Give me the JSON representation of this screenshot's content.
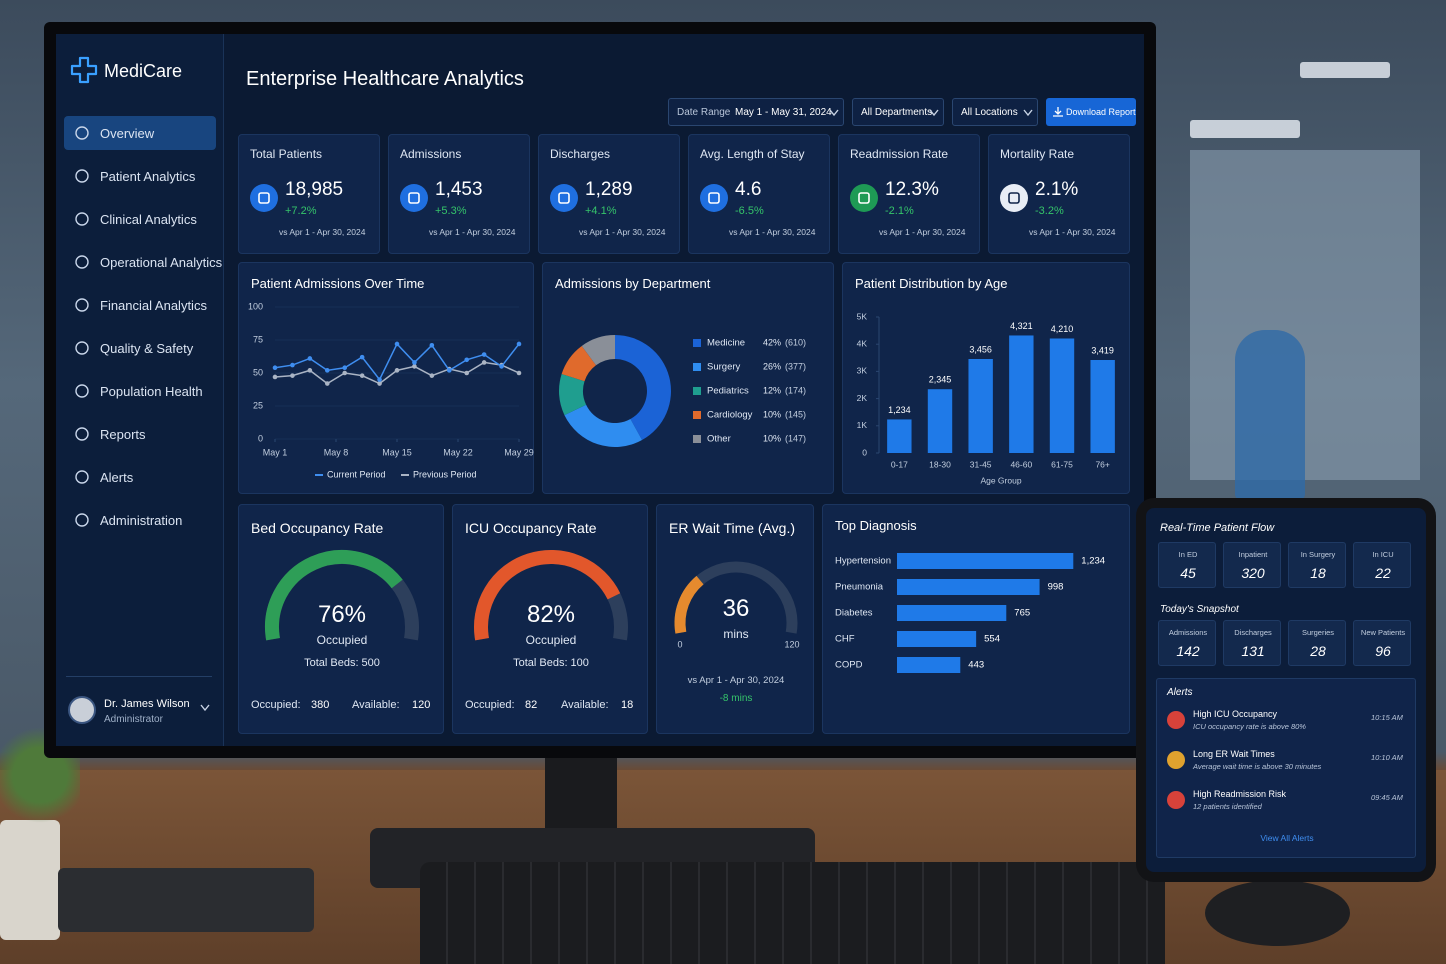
{
  "sidebar": {
    "brand": "MediCare",
    "nav": [
      "Overview",
      "Patient Analytics",
      "Clinical Analytics",
      "Operational Analytics",
      "Financial Analytics",
      "Quality & Safety",
      "Population Health",
      "Reports",
      "Alerts",
      "Administration"
    ],
    "user": {
      "name": "Dr. James Wilson",
      "role": "Administrator"
    }
  },
  "header": {
    "title": "Enterprise Healthcare Analytics",
    "date_label": "Date Range",
    "date_range": "May 1 - May 31, 2024",
    "department": "All Departments",
    "location": "All Locations",
    "download": "Download Report"
  },
  "kpis": [
    {
      "label": "Total Patients",
      "value": "18,985",
      "change": "+7.2%",
      "period": "vs Apr 1 - Apr 30, 2024",
      "color": "#1f6fe0"
    },
    {
      "label": "Admissions",
      "value": "1,453",
      "change": "+5.3%",
      "period": "vs Apr 1 - Apr 30, 2024",
      "color": "#1f6fe0"
    },
    {
      "label": "Discharges",
      "value": "1,289",
      "change": "+4.1%",
      "period": "vs Apr 1 - Apr 30, 2024",
      "color": "#1f6fe0"
    },
    {
      "label": "Avg. Length of Stay",
      "value": "4.6",
      "change": "-6.5%",
      "period": "vs Apr 1 - Apr 30, 2024",
      "color": "#1f6fe0"
    },
    {
      "label": "Readmission Rate",
      "value": "12.3%",
      "change": "-2.1%",
      "period": "vs Apr 1 - Apr 30, 2024",
      "color": "#1e9a55"
    },
    {
      "label": "Mortality Rate",
      "value": "2.1%",
      "change": "-3.2%",
      "period": "vs Apr 1 - Apr 30, 2024",
      "color": "#e8edf5"
    }
  ],
  "chart_data": [
    {
      "type": "line",
      "title": "Patient Admissions Over Time",
      "x": [
        1,
        3,
        5,
        7,
        9,
        11,
        13,
        15,
        17,
        19,
        21,
        23,
        25,
        27,
        29
      ],
      "xlim": [
        1,
        29
      ],
      "xticks": [
        {
          "value": 1,
          "label": "May 1"
        },
        {
          "value": 8,
          "label": "May 8"
        },
        {
          "value": 15,
          "label": "May 15"
        },
        {
          "value": 22,
          "label": "May 22"
        },
        {
          "value": 29,
          "label": "May 29"
        }
      ],
      "ylim": [
        0,
        100
      ],
      "yticks": [
        0,
        25,
        50,
        75,
        100
      ],
      "series": [
        {
          "name": "Current Period",
          "color": "#3f8ef0",
          "values": [
            54,
            56,
            61,
            52,
            54,
            62,
            45,
            72,
            58,
            71,
            52,
            60,
            64,
            55,
            72
          ]
        },
        {
          "name": "Previous Period",
          "color": "#aab4c4",
          "values": [
            47,
            48,
            52,
            42,
            50,
            48,
            42,
            52,
            55,
            48,
            53,
            50,
            58,
            56,
            50
          ]
        }
      ]
    },
    {
      "type": "pie",
      "title": "Admissions by Department",
      "categories": [
        "Medicine",
        "Surgery",
        "Pediatrics",
        "Cardiology",
        "Other"
      ],
      "values": [
        610,
        377,
        174,
        145,
        147
      ],
      "value_labels": [
        "(610)",
        "(377)",
        "(174)",
        "(145)",
        "(147)"
      ],
      "shares": [
        42,
        26,
        12,
        10,
        10
      ],
      "share_labels": [
        "42%",
        "26%",
        "12%",
        "10%",
        "10%"
      ],
      "colors": [
        "#1b63d6",
        "#2f8df0",
        "#1f9e8f",
        "#e06a2c",
        "#8a8f98"
      ]
    },
    {
      "type": "bar",
      "title": "Patient Distribution by Age",
      "x_label": "Age Group",
      "categories": [
        "0-17",
        "18-30",
        "31-45",
        "46-60",
        "61-75",
        "76+"
      ],
      "values": [
        1234,
        2345,
        3456,
        4321,
        4210,
        3419
      ],
      "value_labels": [
        "1,234",
        "2,345",
        "3,456",
        "4,321",
        "4,210",
        "3,419"
      ],
      "ylim": [
        0,
        5000
      ],
      "yticks": [
        0,
        {
          "value": 1000,
          "label": "1K"
        },
        {
          "value": 2000,
          "label": "2K"
        },
        {
          "value": 3000,
          "label": "3K"
        },
        {
          "value": 4000,
          "label": "4K"
        },
        {
          "value": 5000,
          "label": "5K"
        }
      ],
      "color": "#1f7ae8"
    },
    {
      "type": "hbar",
      "title": "Top Diagnosis",
      "categories": [
        "Hypertension",
        "Pneumonia",
        "Diabetes",
        "CHF",
        "COPD"
      ],
      "values": [
        1234,
        998,
        765,
        554,
        443
      ],
      "value_labels": [
        "1,234",
        "998",
        "765",
        "554",
        "443"
      ],
      "xlim": [
        0,
        1400
      ],
      "color": "#1f7ae8"
    },
    {
      "type": "gauge",
      "title": "Bed Occupancy Rate",
      "value": 76,
      "value_label": "76%",
      "caption": "Occupied",
      "total": "Total Beds: 500",
      "ylim": [
        0,
        100
      ],
      "stats": [
        {
          "label": "Occupied:",
          "value": 380
        },
        {
          "label": "Available:",
          "value": 120
        }
      ],
      "color": "#2e9e57"
    },
    {
      "type": "gauge",
      "title": "ICU Occupancy Rate",
      "value": 82,
      "value_label": "82%",
      "caption": "Occupied",
      "total": "Total Beds: 100",
      "ylim": [
        0,
        100
      ],
      "stats": [
        {
          "label": "Occupied:",
          "value": 82
        },
        {
          "label": "Available:",
          "value": 18
        }
      ],
      "color": "#e2572b"
    },
    {
      "type": "gauge",
      "title": "ER Wait Time (Avg.)",
      "value": 36,
      "unit": "mins",
      "ylim": [
        0,
        120
      ],
      "comparison": "vs Apr 1 - Apr 30, 2024",
      "change": "-8 mins",
      "color": "#e58a2e"
    }
  ],
  "tablet": {
    "flow_title": "Real-Time Patient Flow",
    "flow": [
      {
        "label": "In ED",
        "value": 45
      },
      {
        "label": "Inpatient",
        "value": 320
      },
      {
        "label": "In Surgery",
        "value": 18
      },
      {
        "label": "In ICU",
        "value": 22
      }
    ],
    "snapshot_title": "Today's Snapshot",
    "snapshot": [
      {
        "label": "Admissions",
        "value": 142
      },
      {
        "label": "Discharges",
        "value": 131
      },
      {
        "label": "Surgeries",
        "value": 28
      },
      {
        "label": "New Patients",
        "value": 96
      }
    ],
    "alerts_title": "Alerts",
    "alerts": [
      {
        "title": "High ICU Occupancy",
        "detail": "ICU occupancy rate is above 80%",
        "time": "10:15 AM",
        "color": "#d8423a"
      },
      {
        "title": "Long ER Wait Times",
        "detail": "Average wait time is above 30 minutes",
        "time": "10:10 AM",
        "color": "#e0a22e"
      },
      {
        "title": "High Readmission Risk",
        "detail": "12 patients identified",
        "time": "09:45 AM",
        "color": "#d8423a"
      }
    ],
    "view_all": "View All Alerts"
  }
}
